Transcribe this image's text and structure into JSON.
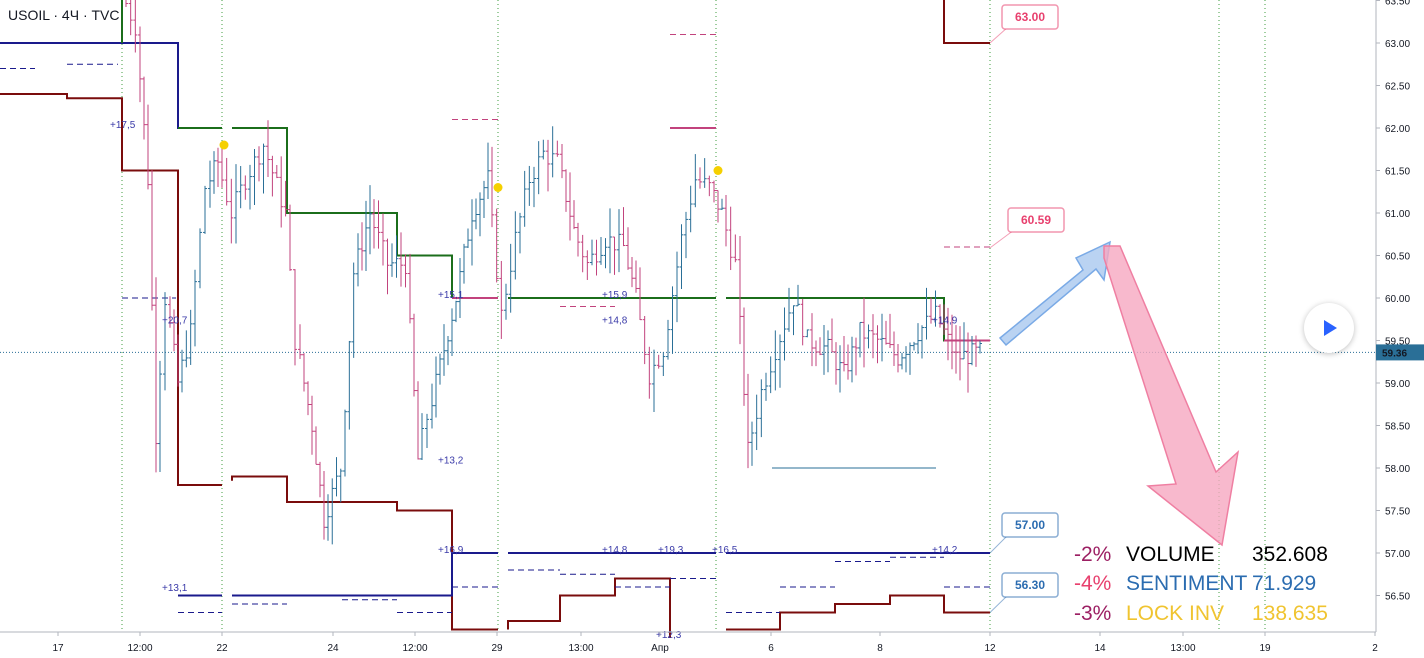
{
  "header": {
    "title": "USOIL · 4Ч · TVC"
  },
  "chart_data": {
    "type": "candlestick",
    "symbol": "USOIL",
    "ylim": [
      56.1,
      63.6
    ],
    "y_ticks": [
      "63.50",
      "63.00",
      "62.50",
      "62.00",
      "61.50",
      "61.00",
      "60.50",
      "60.00",
      "59.50",
      "59.00",
      "58.50",
      "58.00",
      "57.50",
      "57.00",
      "56.50"
    ],
    "x_ticks": [
      "17",
      "12:00",
      "22",
      "24",
      "12:00",
      "29",
      "13:00",
      "Апр",
      "6",
      "8",
      "12",
      "14",
      "13:00",
      "19",
      "2"
    ],
    "last_price": "59.36",
    "price_tags": [
      {
        "label": "63.00",
        "color": "#e8406e"
      },
      {
        "label": "60.59",
        "color": "#e8406e"
      },
      {
        "label": "57.00",
        "color": "#2b6cb0"
      },
      {
        "label": "56.30",
        "color": "#2b6cb0"
      }
    ],
    "annotations": [
      "+17,5",
      "+20,7",
      "+13,1",
      "+15,1",
      "+13,2",
      "+16,9",
      "+15,9",
      "+14,8",
      "+14,8",
      "+19,3",
      "+16,5",
      "+12,3",
      "+14,9",
      "+14,2"
    ],
    "stats": [
      {
        "pct": "-2%",
        "name": "VOLUME",
        "value": "352.608",
        "pct_color": "#9c1f63",
        "name_color": "#000000",
        "value_color": "#000000"
      },
      {
        "pct": "-4%",
        "name": "SENTIMENT",
        "value": "71.929",
        "pct_color": "#e8406e",
        "name_color": "#2b6cb0",
        "value_color": "#2b6cb0"
      },
      {
        "pct": "-3%",
        "name": "LOCK INV",
        "value": "138.635",
        "pct_color": "#9c1f63",
        "name_color": "#f0c430",
        "value_color": "#f0c430"
      }
    ],
    "colors": {
      "up": "#2a6f97",
      "down": "#c2437d",
      "green_line": "#1b6e1b",
      "red_line": "#7a0c0c",
      "blue_line": "#1a1a8c",
      "marker": "#f5d000"
    }
  }
}
